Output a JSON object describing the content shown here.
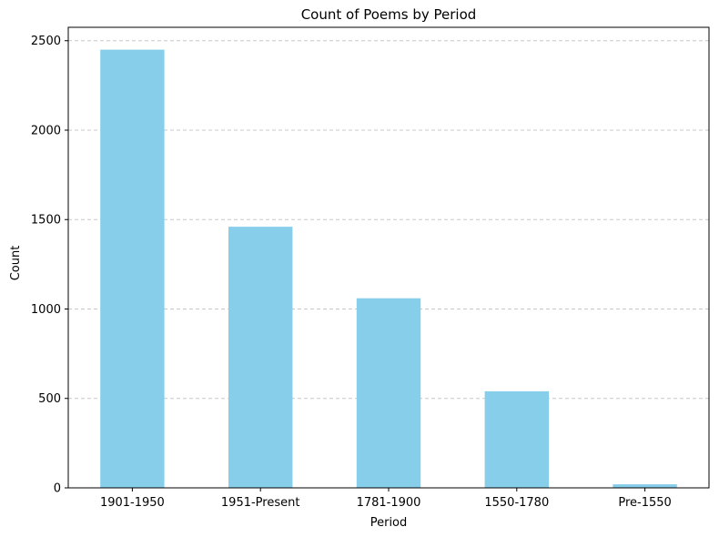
{
  "chart_data": {
    "type": "bar",
    "title": "Count of Poems by Period",
    "xlabel": "Period",
    "ylabel": "Count",
    "categories": [
      "1901-1950",
      "1951-Present",
      "1781-1900",
      "1550-1780",
      "Pre-1550"
    ],
    "values": [
      2450,
      1460,
      1060,
      540,
      20
    ],
    "ylim": [
      0,
      2575
    ],
    "yticks": [
      0,
      500,
      1000,
      1500,
      2000,
      2500
    ],
    "grid": "y-dashed",
    "bar_color": "#87CEEB",
    "grid_color": "#c8c8c8"
  }
}
